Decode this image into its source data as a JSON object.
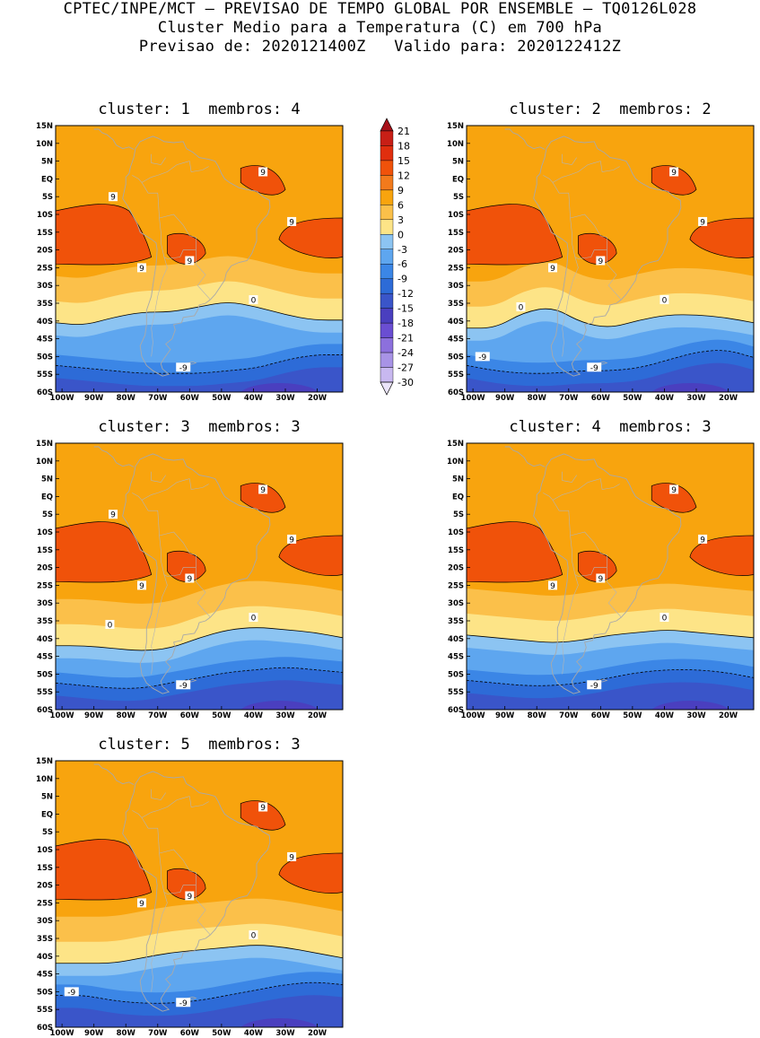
{
  "header": {
    "line1": "CPTEC/INPE/MCT – PREVISAO DE TEMPO GLOBAL POR ENSEMBLE – TQ0126L028",
    "line2": "Cluster Medio para a Temperatura (C) em 700 hPa",
    "line3": "Previsao de: 2020121400Z   Valido para: 2020122412Z"
  },
  "lat_labels": [
    "15N",
    "10N",
    "5N",
    "EQ",
    "5S",
    "10S",
    "15S",
    "20S",
    "25S",
    "30S",
    "35S",
    "40S",
    "45S",
    "50S",
    "55S",
    "60S"
  ],
  "lon_labels": [
    "100W",
    "90W",
    "80W",
    "70W",
    "60W",
    "50W",
    "40W",
    "30W",
    "20W"
  ],
  "colorbar": {
    "values": [
      "21",
      "18",
      "15",
      "12",
      "9",
      "6",
      "3",
      "0",
      "-3",
      "-6",
      "-9",
      "-12",
      "-15",
      "-18",
      "-21",
      "-24",
      "-27",
      "-30"
    ],
    "colors": [
      "#a8111a",
      "#c81f16",
      "#e02e0e",
      "#f0520a",
      "#f27a1c",
      "#f8a40e",
      "#fbc04a",
      "#fde487",
      "#8cc4f2",
      "#5ea6ef",
      "#3b86e6",
      "#2d6bd7",
      "#3a55c9",
      "#4a3fbf",
      "#6a4ed2",
      "#8c70dd",
      "#a893e6",
      "#c8b8f0",
      "#ebe4fa"
    ]
  },
  "panels": [
    {
      "title": "cluster: 1  membros: 4",
      "labels": [
        "9",
        "9",
        "9",
        "9",
        "9",
        "0",
        "-9"
      ],
      "z0": [
        0.74,
        0.75,
        0.72,
        0.7,
        0.7,
        0.68,
        0.66,
        0.68,
        0.71,
        0.73,
        0.73
      ],
      "zm9": [
        0.9,
        0.91,
        0.92,
        0.93,
        0.93,
        0.93,
        0.92,
        0.91,
        0.88,
        0.86,
        0.86
      ]
    },
    {
      "title": "cluster: 2  membros: 2",
      "labels": [
        "9",
        "9",
        "9",
        "9",
        "0",
        "0",
        "-9",
        "-9"
      ],
      "z0": [
        0.76,
        0.76,
        0.7,
        0.68,
        0.74,
        0.76,
        0.73,
        0.71,
        0.71,
        0.72,
        0.74
      ],
      "zm9": [
        0.9,
        0.92,
        0.93,
        0.93,
        0.92,
        0.92,
        0.91,
        0.88,
        0.85,
        0.84,
        0.87
      ]
    },
    {
      "title": "cluster: 3  membros: 3",
      "labels": [
        "9",
        "9",
        "9",
        "9",
        "9",
        "0",
        "0",
        "-9"
      ],
      "z0": [
        0.76,
        0.76,
        0.77,
        0.78,
        0.77,
        0.73,
        0.7,
        0.69,
        0.7,
        0.71,
        0.73
      ],
      "zm9": [
        0.9,
        0.91,
        0.92,
        0.92,
        0.9,
        0.88,
        0.86,
        0.85,
        0.84,
        0.85,
        0.86
      ]
    },
    {
      "title": "cluster: 4  membros: 3",
      "labels": [
        "9",
        "9",
        "9",
        "9",
        "0",
        "-9"
      ],
      "z0": [
        0.72,
        0.73,
        0.74,
        0.75,
        0.74,
        0.72,
        0.71,
        0.7,
        0.71,
        0.72,
        0.73
      ],
      "zm9": [
        0.89,
        0.9,
        0.91,
        0.91,
        0.9,
        0.88,
        0.86,
        0.85,
        0.85,
        0.86,
        0.88
      ]
    },
    {
      "title": "cluster: 5  membros: 3",
      "labels": [
        "9",
        "9",
        "9",
        "9",
        "0",
        "-9",
        "-9"
      ],
      "z0": [
        0.76,
        0.76,
        0.76,
        0.74,
        0.72,
        0.71,
        0.7,
        0.69,
        0.7,
        0.72,
        0.74
      ],
      "zm9": [
        0.88,
        0.88,
        0.9,
        0.91,
        0.91,
        0.9,
        0.88,
        0.86,
        0.84,
        0.83,
        0.84
      ]
    }
  ]
}
